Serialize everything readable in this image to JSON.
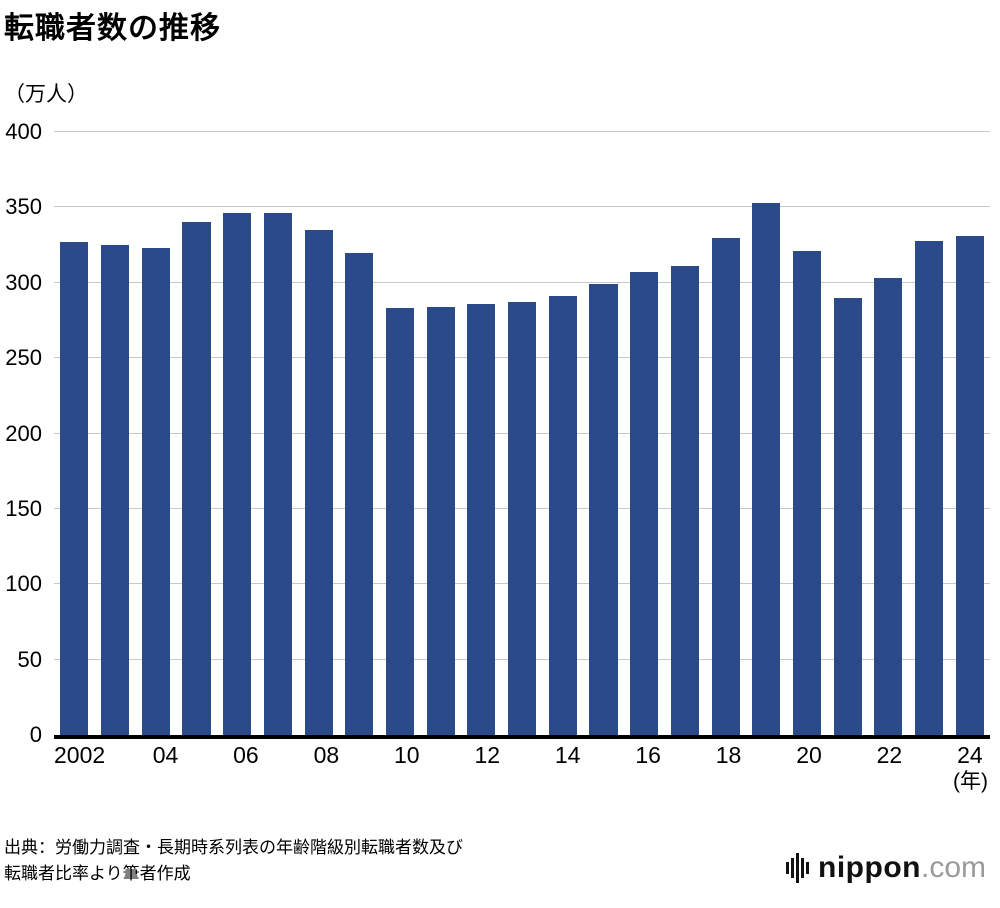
{
  "title": "転職者数の推移",
  "unit_label": "（万人）",
  "chart_data": {
    "type": "bar",
    "title": "転職者数の推移",
    "ylabel": "（万人）",
    "xlabel": "(年)",
    "years": [
      2002,
      2003,
      2004,
      2005,
      2006,
      2007,
      2008,
      2009,
      2010,
      2011,
      2012,
      2013,
      2014,
      2015,
      2016,
      2017,
      2018,
      2019,
      2020,
      2021,
      2022,
      2023,
      2024
    ],
    "values": [
      327,
      325,
      323,
      340,
      346,
      346,
      335,
      320,
      283,
      284,
      286,
      287,
      291,
      299,
      307,
      311,
      330,
      353,
      321,
      290,
      303,
      328,
      331
    ],
    "ylim": [
      0,
      400
    ],
    "ytick_values": [
      0,
      50,
      100,
      150,
      200,
      250,
      300,
      350,
      400
    ],
    "ytick_labels": [
      "0",
      "50",
      "100",
      "150",
      "200",
      "250",
      "300",
      "350",
      "400"
    ],
    "xtick_labels": [
      "2002",
      "",
      "04",
      "",
      "06",
      "",
      "08",
      "",
      "10",
      "",
      "12",
      "",
      "14",
      "",
      "16",
      "",
      "18",
      "",
      "20",
      "",
      "22",
      "",
      "24"
    ],
    "x_axis_unit": "(年)",
    "bar_color": "#2b4a89",
    "gridline_color": "#c9c9c9",
    "grid": true,
    "legend": "none"
  },
  "source": {
    "line1": "出典：労働力調査・長期時系列表の年齢階級別転職者数及び",
    "line2": "転職者比率より筆者作成"
  },
  "logo": {
    "brand": "nippon",
    "tld": ".com"
  }
}
